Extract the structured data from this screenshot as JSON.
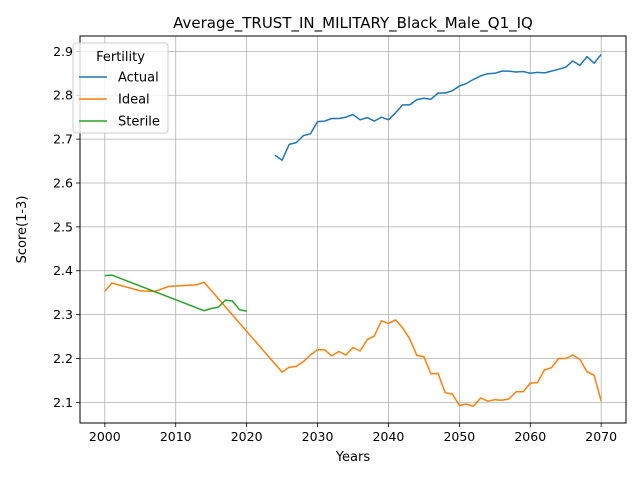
{
  "chart_data": {
    "type": "line",
    "title": "Average_TRUST_IN_MILITARY_Black_Male_Q1_IQ",
    "xlabel": "Years",
    "ylabel": "Score(1-3)",
    "xlim": [
      1996.5,
      2073.5
    ],
    "ylim": [
      2.053,
      2.935
    ],
    "xticks": [
      2000,
      2010,
      2020,
      2030,
      2040,
      2050,
      2060,
      2070
    ],
    "yticks": [
      2.1,
      2.2,
      2.3,
      2.4,
      2.5,
      2.6,
      2.7,
      2.8,
      2.9
    ],
    "grid": true,
    "legend": {
      "title": "Fertility",
      "placement": "top-left"
    },
    "series": [
      {
        "name": "Actual",
        "color": "#1f77b4",
        "x": [
          2024,
          2025,
          2026,
          2027,
          2028,
          2029,
          2030,
          2031,
          2032,
          2033,
          2034,
          2035,
          2036,
          2037,
          2038,
          2039,
          2040,
          2041,
          2042,
          2043,
          2044,
          2045,
          2046,
          2047,
          2048,
          2049,
          2050,
          2051,
          2052,
          2053,
          2054,
          2055,
          2056,
          2057,
          2058,
          2059,
          2060,
          2061,
          2062,
          2063,
          2064,
          2065,
          2066,
          2067,
          2068,
          2069,
          2070
        ],
        "y": [
          2.663,
          2.652,
          2.688,
          2.692,
          2.708,
          2.712,
          2.74,
          2.741,
          2.747,
          2.747,
          2.75,
          2.756,
          2.744,
          2.749,
          2.741,
          2.75,
          2.744,
          2.76,
          2.778,
          2.778,
          2.79,
          2.793,
          2.791,
          2.805,
          2.805,
          2.81,
          2.821,
          2.827,
          2.836,
          2.844,
          2.849,
          2.85,
          2.855,
          2.855,
          2.853,
          2.854,
          2.85,
          2.852,
          2.851,
          2.855,
          2.859,
          2.864,
          2.878,
          2.868,
          2.888,
          2.873,
          2.893
        ]
      },
      {
        "name": "Ideal",
        "color": "#ff7f0e",
        "x": [
          2000,
          2001,
          2005,
          2007,
          2009,
          2013,
          2014,
          2025,
          2026,
          2027,
          2028,
          2029,
          2030,
          2031,
          2032,
          2033,
          2034,
          2035,
          2036,
          2037,
          2038,
          2039,
          2040,
          2041,
          2042,
          2043,
          2044,
          2045,
          2046,
          2047,
          2048,
          2049,
          2050,
          2051,
          2052,
          2053,
          2054,
          2055,
          2056,
          2057,
          2058,
          2059,
          2060,
          2061,
          2062,
          2063,
          2064,
          2065,
          2066,
          2067,
          2068,
          2069,
          2070
        ],
        "y": [
          2.353,
          2.372,
          2.354,
          2.353,
          2.364,
          2.368,
          2.374,
          2.169,
          2.18,
          2.182,
          2.193,
          2.208,
          2.22,
          2.22,
          2.206,
          2.216,
          2.208,
          2.225,
          2.217,
          2.243,
          2.251,
          2.286,
          2.28,
          2.288,
          2.27,
          2.245,
          2.207,
          2.204,
          2.165,
          2.166,
          2.122,
          2.119,
          2.093,
          2.096,
          2.091,
          2.11,
          2.103,
          2.106,
          2.105,
          2.108,
          2.124,
          2.124,
          2.144,
          2.145,
          2.174,
          2.179,
          2.2,
          2.2,
          2.208,
          2.198,
          2.17,
          2.162,
          2.103
        ]
      },
      {
        "name": "Sterile",
        "color": "#2ca02c",
        "x": [
          2000,
          2001,
          2014,
          2015,
          2016,
          2017,
          2018,
          2019,
          2020
        ],
        "y": [
          2.389,
          2.39,
          2.309,
          2.314,
          2.317,
          2.333,
          2.331,
          2.311,
          2.308
        ]
      }
    ]
  }
}
